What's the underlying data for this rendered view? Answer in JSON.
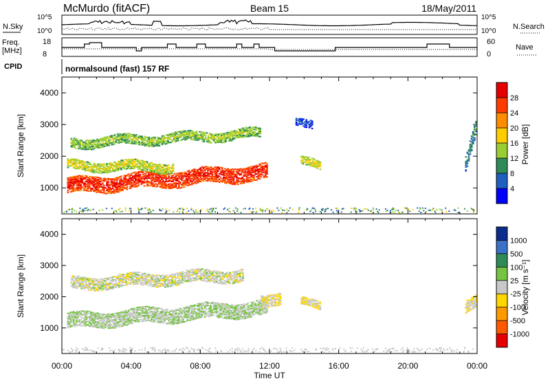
{
  "header": {
    "station": "McMurdo (fitACF)",
    "beam": "Beam 15",
    "date": "18/May/2011"
  },
  "noise_panel": {
    "left_label": "N.Sky",
    "right_label": "N.Search",
    "left_ticks": [
      "10^5",
      "10^0"
    ],
    "right_ticks": [
      "10^5",
      "10^0"
    ]
  },
  "freq_panel": {
    "left_label_1": "Freq.",
    "left_label_2": "[MHz]",
    "right_label": "Nave",
    "left_ticks": [
      "18",
      "8"
    ],
    "right_ticks": [
      "60",
      "0"
    ]
  },
  "cpid": {
    "label": "CPID",
    "value": "normalsound (fast) 157 RF"
  },
  "axes": {
    "ylabel": "Slant Range [km]",
    "xlabel": "Time UT",
    "yticks": [
      "4000",
      "3000",
      "2000",
      "1000"
    ],
    "xticks": [
      "00:00",
      "04:00",
      "08:00",
      "12:00",
      "16:00",
      "20:00",
      "00:00"
    ]
  },
  "colorbars": {
    "power": {
      "label": "Power [dB]",
      "ticks": [
        "28",
        "24",
        "20",
        "16",
        "12",
        "8",
        "4"
      ],
      "colors": [
        "#e60000",
        "#ff3b00",
        "#ff8c00",
        "#ffcc00",
        "#9acd32",
        "#2e8b57",
        "#1f5fbf",
        "#0000ff"
      ]
    },
    "velocity": {
      "label": "Velocity [m s⁻¹]",
      "ticks": [
        "1000",
        "500",
        "100",
        "25",
        "-25",
        "-100",
        "-500",
        "-1000"
      ],
      "colors": [
        "#0a2c8c",
        "#3b72c8",
        "#2e8b57",
        "#76c442",
        "#c8c8c8",
        "#ffd700",
        "#ff9900",
        "#ff5a00",
        "#e60000"
      ]
    }
  },
  "chart_data": {
    "type": "heatmap",
    "title": "McMurdo (fitACF)",
    "x_range_hours": [
      0,
      24
    ],
    "y_range_km": [
      180,
      4500
    ],
    "xlabel": "Time UT",
    "ylabel": "Slant Range [km]",
    "panels": [
      {
        "name": "Power",
        "units": "dB",
        "clim": [
          0,
          30
        ],
        "regions": [
          {
            "t": [
              0.3,
              11.9
            ],
            "r_center": [
              1050,
              1500
            ],
            "width_km": 500,
            "value": 27
          },
          {
            "t": [
              0.3,
              6.5
            ],
            "r_center": [
              1700,
              1650
            ],
            "width_km": 300,
            "value": 16
          },
          {
            "t": [
              0.5,
              11.5
            ],
            "r_center": [
              2400,
              2700
            ],
            "width_km": 300,
            "value": 14
          },
          {
            "t": [
              13.8,
              15.0
            ],
            "r_center": [
              1800,
              1700
            ],
            "width_km": 250,
            "value": 16
          },
          {
            "t": [
              13.5,
              14.5
            ],
            "r_center": [
              3000,
              3000
            ],
            "width_km": 250,
            "value": 6
          },
          {
            "t": [
              23.3,
              24.0
            ],
            "r_center": [
              1700,
              2800
            ],
            "width_km": 500,
            "value": 10
          }
        ]
      },
      {
        "name": "Velocity",
        "units": "m s-1",
        "clim": [
          -1000,
          1000
        ],
        "regions": [
          {
            "t": [
              0.3,
              11.9
            ],
            "r_center": [
              1200,
              1650
            ],
            "width_km": 500,
            "value": 100
          },
          {
            "t": [
              0.5,
              10.5
            ],
            "r_center": [
              2400,
              2700
            ],
            "width_km": 400,
            "value": 0
          },
          {
            "t": [
              11.5,
              12.7
            ],
            "r_center": [
              1800,
              2000
            ],
            "width_km": 400,
            "value": -100
          },
          {
            "t": [
              13.8,
              15.0
            ],
            "r_center": [
              1800,
              1700
            ],
            "width_km": 250,
            "value": -100
          },
          {
            "t": [
              23.3,
              24.0
            ],
            "r_center": [
              1700,
              1800
            ],
            "width_km": 400,
            "value": -100
          }
        ]
      }
    ]
  }
}
